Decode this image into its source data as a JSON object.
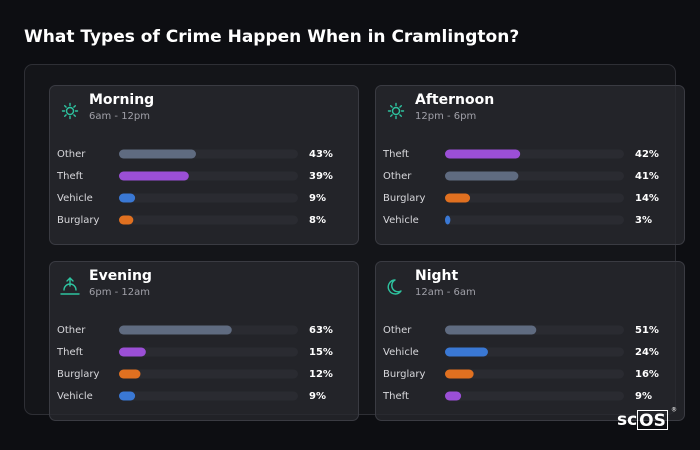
{
  "title": "What Types of Crime Happen When in Cramlington?",
  "logo_prefix": "sc",
  "logo_box": "OS",
  "chart_data": [
    {
      "type": "bar",
      "title": "Morning",
      "subtitle": "6am - 12pm",
      "xlim": [
        0,
        100
      ],
      "categories": [
        "Other",
        "Theft",
        "Vehicle",
        "Burglary"
      ],
      "values": [
        43,
        39,
        9,
        8
      ],
      "value_labels": [
        "43%",
        "39%",
        "9%",
        "8%"
      ],
      "colors": [
        "#5f6b80",
        "#9b4fd6",
        "#3a78d4",
        "#e07020"
      ]
    },
    {
      "type": "bar",
      "title": "Afternoon",
      "subtitle": "12pm - 6pm",
      "xlim": [
        0,
        100
      ],
      "categories": [
        "Theft",
        "Other",
        "Burglary",
        "Vehicle"
      ],
      "values": [
        42,
        41,
        14,
        3
      ],
      "value_labels": [
        "42%",
        "41%",
        "14%",
        "3%"
      ],
      "colors": [
        "#9b4fd6",
        "#5f6b80",
        "#e07020",
        "#3a78d4"
      ]
    },
    {
      "type": "bar",
      "title": "Evening",
      "subtitle": "6pm - 12am",
      "xlim": [
        0,
        100
      ],
      "categories": [
        "Other",
        "Theft",
        "Burglary",
        "Vehicle"
      ],
      "values": [
        63,
        15,
        12,
        9
      ],
      "value_labels": [
        "63%",
        "15%",
        "12%",
        "9%"
      ],
      "colors": [
        "#5f6b80",
        "#9b4fd6",
        "#e07020",
        "#3a78d4"
      ]
    },
    {
      "type": "bar",
      "title": "Night",
      "subtitle": "12am - 6am",
      "xlim": [
        0,
        100
      ],
      "categories": [
        "Other",
        "Vehicle",
        "Burglary",
        "Theft"
      ],
      "values": [
        51,
        24,
        16,
        9
      ],
      "value_labels": [
        "51%",
        "24%",
        "16%",
        "9%"
      ],
      "colors": [
        "#5f6b80",
        "#3a78d4",
        "#e07020",
        "#9b4fd6"
      ]
    }
  ]
}
